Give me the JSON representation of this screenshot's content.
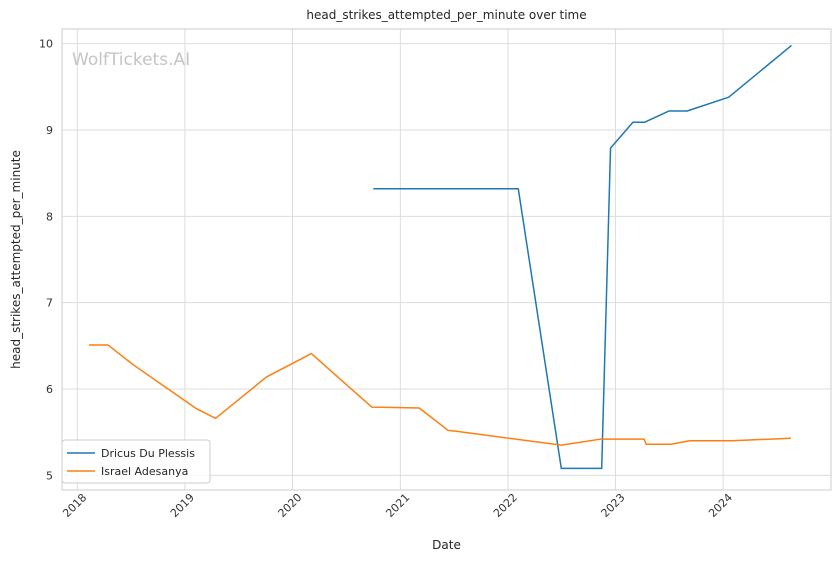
{
  "chart_data": {
    "type": "line",
    "title": "head_strikes_attempted_per_minute over time",
    "xlabel": "Date",
    "ylabel": "head_strikes_attempted_per_minute",
    "watermark": "WolfTickets.AI",
    "xlim": [
      "2017-11-10",
      "2025-01-01"
    ],
    "ylim": [
      4.83,
      10.17
    ],
    "x_ticks": [
      "2018",
      "2019",
      "2020",
      "2021",
      "2022",
      "2023",
      "2024"
    ],
    "y_ticks": [
      "5",
      "6",
      "7",
      "8",
      "9",
      "10"
    ],
    "grid": true,
    "legend_position": "lower-left",
    "series": [
      {
        "name": "Dricus Du Plessis",
        "color": "#1f77b4",
        "points": [
          [
            "2020-10-01",
            8.32
          ],
          [
            "2021-06-01",
            8.32
          ],
          [
            "2022-02-05",
            8.32
          ],
          [
            "2022-07-01",
            5.08
          ],
          [
            "2022-11-15",
            5.08
          ],
          [
            "2022-12-15",
            8.79
          ],
          [
            "2023-03-01",
            9.09
          ],
          [
            "2023-04-10",
            9.09
          ],
          [
            "2023-07-01",
            9.22
          ],
          [
            "2023-09-01",
            9.22
          ],
          [
            "2024-01-20",
            9.38
          ],
          [
            "2024-08-20",
            9.98
          ]
        ]
      },
      {
        "name": "Israel Adesanya",
        "color": "#ff7f0e",
        "points": [
          [
            "2018-02-10",
            6.51
          ],
          [
            "2018-04-15",
            6.51
          ],
          [
            "2018-07-10",
            6.28
          ],
          [
            "2018-11-05",
            6.0
          ],
          [
            "2019-02-10",
            5.77
          ],
          [
            "2019-04-15",
            5.66
          ],
          [
            "2019-10-05",
            6.14
          ],
          [
            "2020-03-05",
            6.41
          ],
          [
            "2020-09-26",
            5.79
          ],
          [
            "2021-03-06",
            5.78
          ],
          [
            "2021-06-12",
            5.52
          ],
          [
            "2021-07-10",
            5.51
          ],
          [
            "2022-07-02",
            5.35
          ],
          [
            "2022-11-12",
            5.42
          ],
          [
            "2023-04-08",
            5.42
          ],
          [
            "2023-04-15",
            5.36
          ],
          [
            "2023-07-08",
            5.36
          ],
          [
            "2023-09-10",
            5.4
          ],
          [
            "2024-02-01",
            5.4
          ],
          [
            "2024-08-18",
            5.43
          ]
        ]
      }
    ]
  }
}
